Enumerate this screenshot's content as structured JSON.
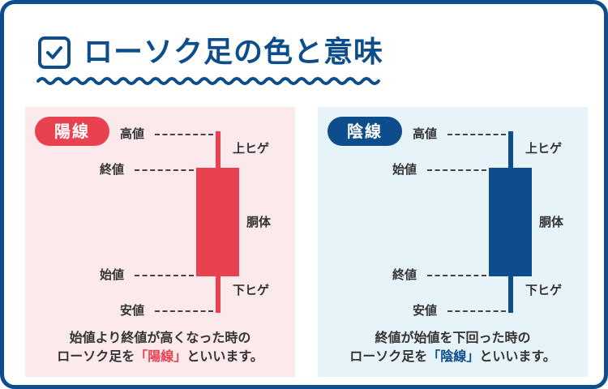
{
  "title": "ローソク足の色と意味",
  "colors": {
    "navy": "#0d4d8b",
    "red": "#e8414f",
    "pink_bg": "#fbe9eb",
    "blue_bg": "#e6f3f8"
  },
  "icon": "checkbox-icon",
  "yang": {
    "badge": "陽線",
    "high": "高値",
    "close": "終値",
    "open": "始値",
    "low": "安値",
    "upper_shadow": "上ヒゲ",
    "body": "胴体",
    "lower_shadow": "下ヒゲ",
    "caption_line1": "始値より終値が高くなった時の",
    "caption_line2_pre": "ローソク足を",
    "caption_highlight": "「陽線」",
    "caption_line2_post": "といいます。"
  },
  "yin": {
    "badge": "陰線",
    "high": "高値",
    "open": "始値",
    "close": "終値",
    "low": "安値",
    "upper_shadow": "上ヒゲ",
    "body": "胴体",
    "lower_shadow": "下ヒゲ",
    "caption_line1": "終値が始値を下回った時の",
    "caption_line2_pre": "ローソク足を",
    "caption_highlight": "「陰線」",
    "caption_line2_post": "といいます。"
  }
}
